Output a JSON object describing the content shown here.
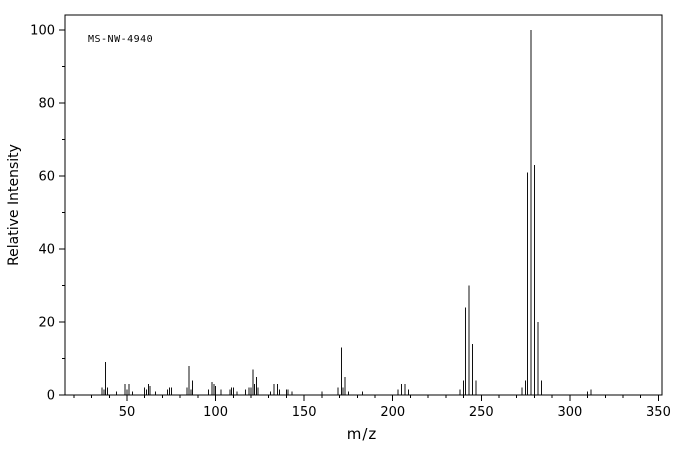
{
  "page": {
    "background": "#ffffff"
  },
  "chart": {
    "annotation": "MS-NW-4940",
    "xlabel": "m/z",
    "ylabel": "Relative Intensity",
    "axis_color": "#000000",
    "peak_color": "#101010",
    "text_color": "#000000",
    "tick_font_size": 13
  },
  "chart_data": {
    "type": "bar",
    "variant": "mass-spectrum-stick-plot",
    "annotation": "MS-NW-4940",
    "xlabel": "m/z",
    "ylabel": "Relative Intensity",
    "xlim": [
      15,
      352
    ],
    "ylim": [
      0,
      100
    ],
    "x_major_ticks": [
      50,
      100,
      150,
      200,
      250,
      300,
      350
    ],
    "x_minor_tick_step": 10,
    "y_major_ticks": [
      0,
      20,
      40,
      60,
      80,
      100
    ],
    "y_minor_tick_step": 10,
    "grid": false,
    "legend": false,
    "peaks": [
      [
        36,
        2
      ],
      [
        37,
        1.5
      ],
      [
        38,
        9
      ],
      [
        39,
        2
      ],
      [
        44,
        1
      ],
      [
        49,
        3
      ],
      [
        50,
        1.5
      ],
      [
        51,
        3
      ],
      [
        53,
        1
      ],
      [
        60,
        2
      ],
      [
        61,
        1.5
      ],
      [
        62,
        3
      ],
      [
        63,
        2.5
      ],
      [
        66,
        1
      ],
      [
        73,
        1.5
      ],
      [
        74,
        2
      ],
      [
        75,
        2
      ],
      [
        84,
        2
      ],
      [
        85,
        8
      ],
      [
        86,
        1.5
      ],
      [
        87,
        4
      ],
      [
        96,
        1.5
      ],
      [
        98,
        3.5
      ],
      [
        99,
        3
      ],
      [
        100,
        2.5
      ],
      [
        103,
        1.5
      ],
      [
        108,
        1.5
      ],
      [
        109,
        2
      ],
      [
        110,
        2
      ],
      [
        112,
        1
      ],
      [
        117,
        1.5
      ],
      [
        119,
        2
      ],
      [
        120,
        2
      ],
      [
        121,
        7
      ],
      [
        122,
        3
      ],
      [
        123,
        5
      ],
      [
        124,
        2
      ],
      [
        131,
        1
      ],
      [
        133,
        3
      ],
      [
        135,
        3
      ],
      [
        136,
        1.5
      ],
      [
        140,
        1.5
      ],
      [
        141,
        1.5
      ],
      [
        143,
        1
      ],
      [
        160,
        1
      ],
      [
        169,
        2
      ],
      [
        171,
        13
      ],
      [
        172,
        2
      ],
      [
        173,
        5
      ],
      [
        175,
        1
      ],
      [
        183,
        1
      ],
      [
        203,
        1.5
      ],
      [
        205,
        3
      ],
      [
        207,
        3
      ],
      [
        209,
        1.5
      ],
      [
        238,
        1.5
      ],
      [
        240,
        4
      ],
      [
        241,
        24
      ],
      [
        243,
        30
      ],
      [
        245,
        14
      ],
      [
        247,
        4
      ],
      [
        273,
        2
      ],
      [
        275,
        4
      ],
      [
        276,
        61
      ],
      [
        278,
        100
      ],
      [
        280,
        63
      ],
      [
        282,
        20
      ],
      [
        284,
        4
      ],
      [
        310,
        1
      ],
      [
        312,
        1.5
      ]
    ]
  }
}
